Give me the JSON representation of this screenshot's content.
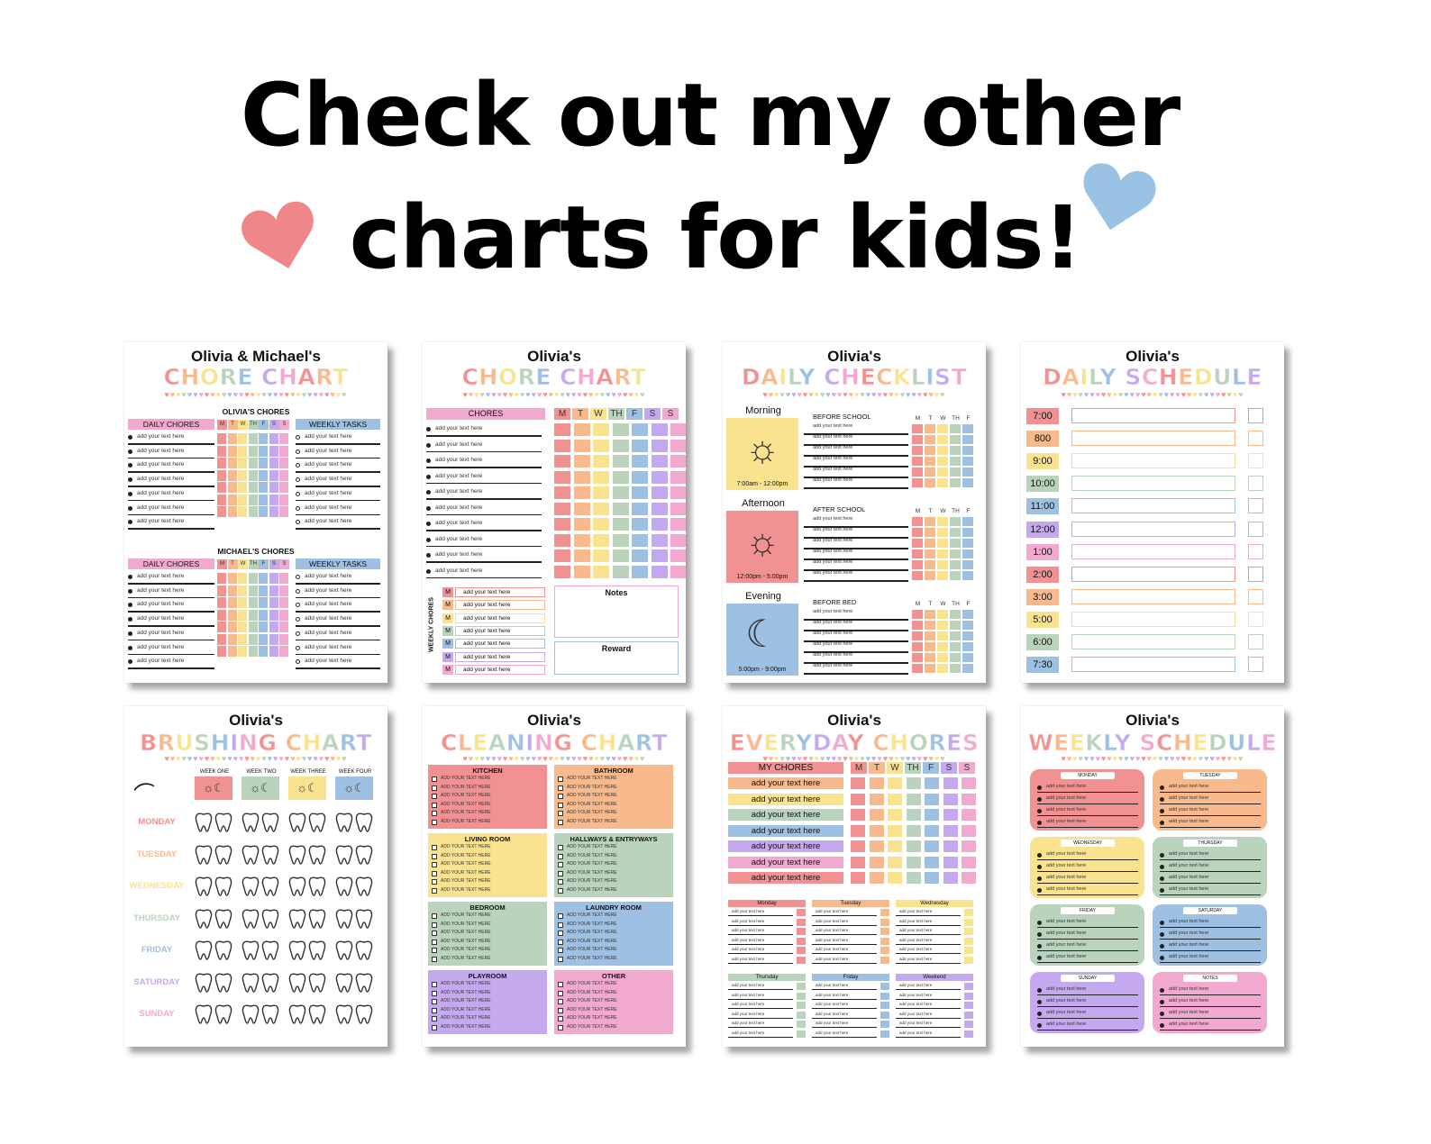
{
  "headline": {
    "line1": "Check out my other",
    "line2": "charts for kids!"
  },
  "colors": {
    "red": "#f29191",
    "orange": "#f8b98d",
    "yellow": "#f9e38f",
    "green": "#b9d3bd",
    "blue": "#9dc0e3",
    "purple": "#c5a9ee",
    "pink": "#f2a9cf",
    "heart_red": "#ef8689",
    "heart_blue": "#99c2e4"
  },
  "icons": {
    "heart_left": "heart-icon",
    "heart_right": "heart-icon",
    "sun": "sun-icon",
    "moon": "moon-icon",
    "cloud_sun": "cloud-sun-icon",
    "toothbrush": "toothbrush-icon",
    "tooth": "tooth-icon"
  },
  "cards": [
    {
      "name": "Olivia &  Michael's",
      "title": "CHORE CHART",
      "sections": [
        "OLIVIA'S CHORES",
        "MICHAEL'S CHORES"
      ],
      "daily_label": "DAILY CHORES",
      "weekly_label": "WEEKLY TASKS",
      "days": [
        "M",
        "T",
        "W",
        "TH",
        "F",
        "S",
        "S"
      ],
      "item": "add your text here"
    },
    {
      "name": "Olivia's",
      "title": "CHORE CHART",
      "chores_label": "CHORES",
      "days": [
        "M",
        "T",
        "W",
        "TH",
        "F",
        "S",
        "S"
      ],
      "item": "add your text here",
      "weekly_label": "WEEKLY CHORES",
      "weekly_day": "M",
      "notes": "Notes",
      "reward": "Reward"
    },
    {
      "name": "Olivia's",
      "title": "DAILY CHECKLIST",
      "periods": [
        {
          "label": "Morning",
          "time": "7:00am - 12:00pm",
          "section": "BEFORE SCHOOL"
        },
        {
          "label": "Afternoon",
          "time": "12:00pm - 5:00pm",
          "section": "AFTER SCHOOL"
        },
        {
          "label": "Evening",
          "time": "5:00pm - 9:00pm",
          "section": "BEFORE BED"
        }
      ],
      "days": [
        "M",
        "T",
        "W",
        "TH",
        "F"
      ],
      "item": "add your text here"
    },
    {
      "name": "Olivia's",
      "title": "DAILY SCHEDULE",
      "times": [
        "7:00",
        "800",
        "9:00",
        "10:00",
        "11:00",
        "12:00",
        "1:00",
        "2:00",
        "3:00",
        "5:00",
        "6:00",
        "7:30"
      ]
    },
    {
      "name": "Olivia's",
      "title": "BRUSHING CHART",
      "weeks": [
        "WEEK ONE",
        "WEEK TWO",
        "WEEK THREE",
        "WEEK FOUR"
      ],
      "days": [
        "MONDAY",
        "TUESDAY",
        "WEDNESDAY",
        "THURSDAY",
        "FRIDAY",
        "SATURDAY",
        "SUNDAY"
      ]
    },
    {
      "name": "Olivia's",
      "title": "CLEANING CHART",
      "rooms": [
        "KITCHEN",
        "BATHROOM",
        "LIVING ROOM",
        "HALLWAYS & ENTRYWAYS",
        "BEDROOM",
        "LAUNDRY ROOM",
        "PLAYROOM",
        "OTHER"
      ],
      "item": "ADD YOUR TEXT HERE"
    },
    {
      "name": "Olivia's",
      "title": "EVERYDAY CHORES",
      "chores_label": "MY CHORES",
      "days": [
        "M",
        "T",
        "W",
        "TH",
        "F",
        "S",
        "S"
      ],
      "item": "add your text here",
      "weekdays": [
        "Monday",
        "Tuesday",
        "Wednesday",
        "Thursday",
        "Friday",
        "Weekend"
      ]
    },
    {
      "name": "Olivia's",
      "title": "WEEKLY SCHEDULE",
      "boxes": [
        "MONDAY",
        "TUESDAY",
        "WEDNESDAY",
        "THURSDAY",
        "FRIDAY",
        "SATURDAY",
        "SUNDAY",
        "NOTES"
      ],
      "item": "add your text here"
    }
  ]
}
